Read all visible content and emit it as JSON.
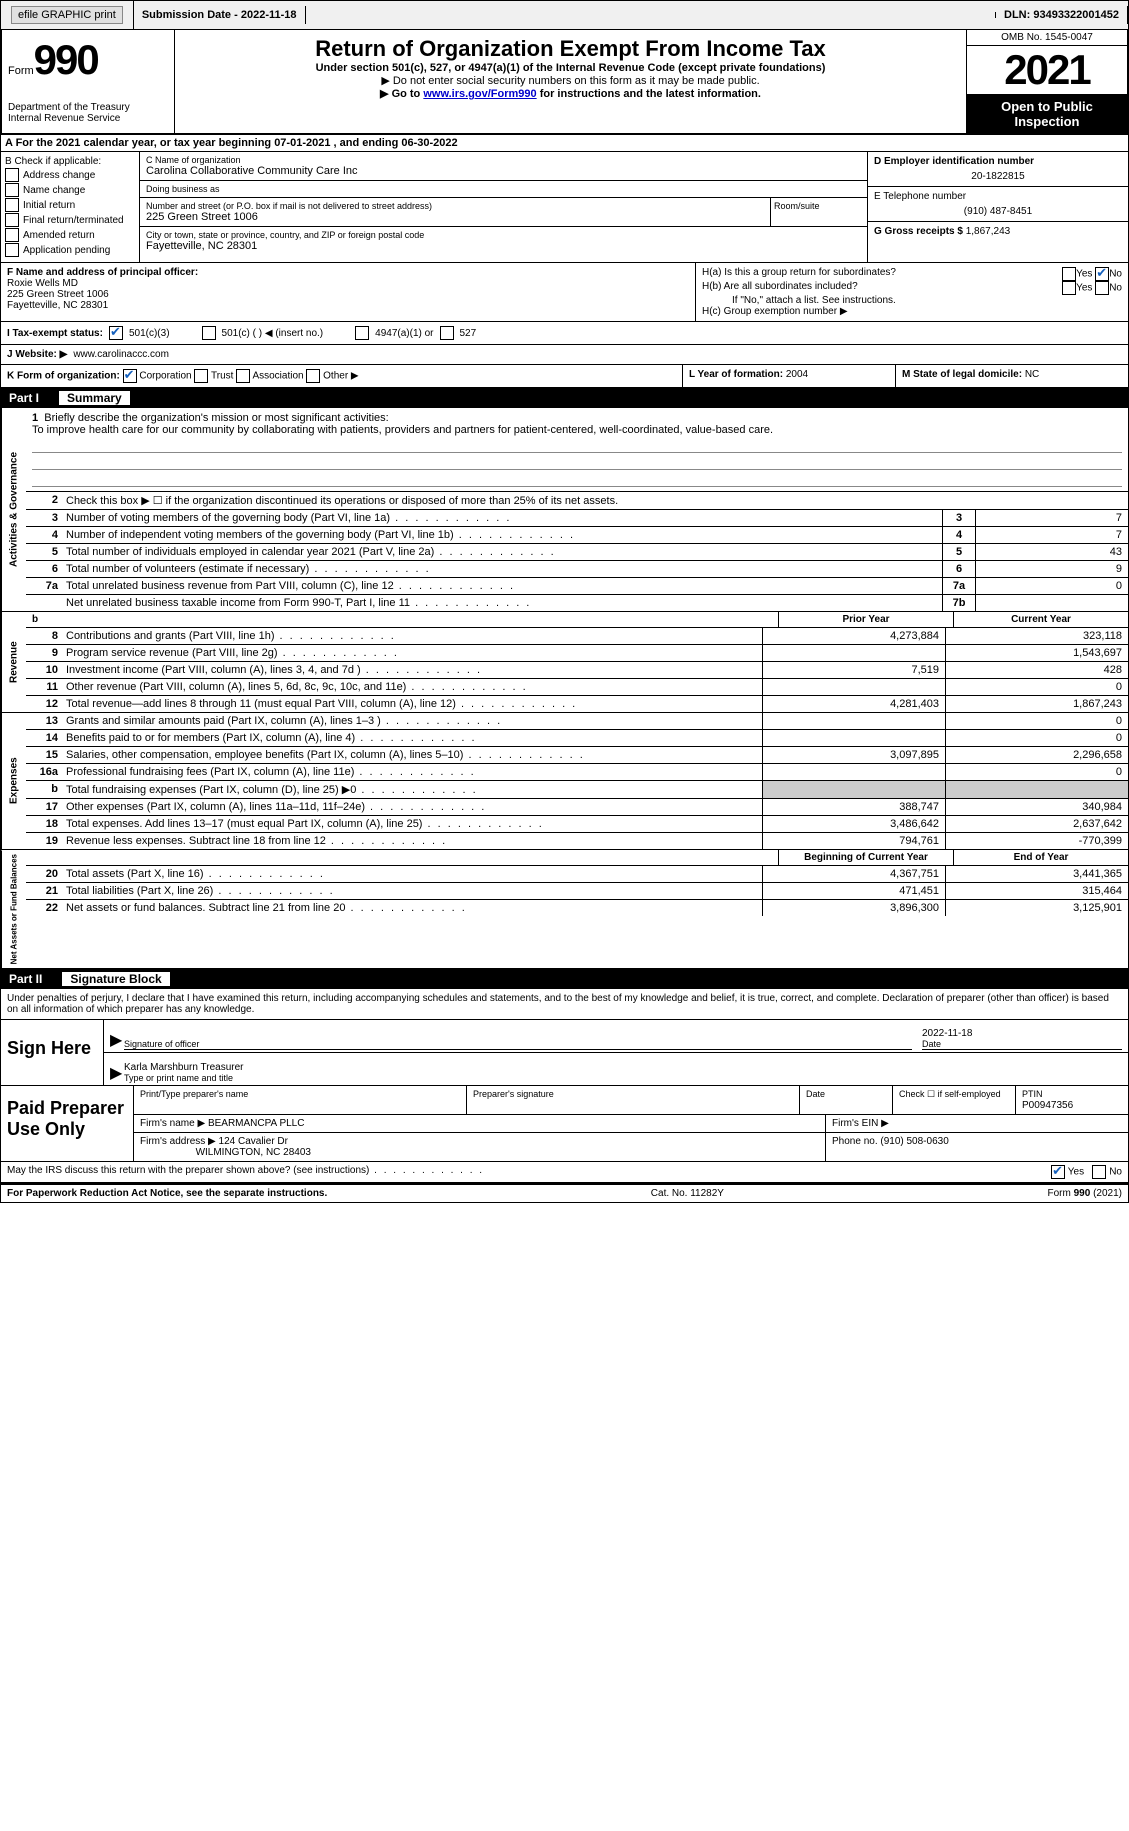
{
  "top_bar": {
    "efile": "efile GRAPHIC print",
    "submission_label": "Submission Date - ",
    "submission_date": "2022-11-18",
    "dln_label": "DLN: ",
    "dln": "93493322001452"
  },
  "header": {
    "form_label": "Form",
    "form_number": "990",
    "dept": "Department of the Treasury",
    "irs": "Internal Revenue Service",
    "title": "Return of Organization Exempt From Income Tax",
    "subtitle": "Under section 501(c), 527, or 4947(a)(1) of the Internal Revenue Code (except private foundations)",
    "warn": "▶ Do not enter social security numbers on this form as it may be made public.",
    "goto": "▶ Go to ",
    "goto_link": "www.irs.gov/Form990",
    "goto_tail": " for instructions and the latest information.",
    "omb": "OMB No. 1545-0047",
    "year": "2021",
    "inspect1": "Open to Public",
    "inspect2": "Inspection"
  },
  "section_a": "A For the 2021 calendar year, or tax year beginning 07-01-2021    , and ending 06-30-2022",
  "col_b": {
    "header": "B Check if applicable:",
    "items": [
      "Address change",
      "Name change",
      "Initial return",
      "Final return/terminated",
      "Amended return",
      "Application pending"
    ]
  },
  "col_c": {
    "name_label": "C Name of organization",
    "name": "Carolina Collaborative Community Care Inc",
    "dba_label": "Doing business as",
    "dba": "",
    "street_label": "Number and street (or P.O. box if mail is not delivered to street address)",
    "room_label": "Room/suite",
    "street": "225 Green Street 1006",
    "city_label": "City or town, state or province, country, and ZIP or foreign postal code",
    "city": "Fayetteville, NC  28301"
  },
  "col_d": {
    "ein_label": "D Employer identification number",
    "ein": "20-1822815",
    "phone_label": "E Telephone number",
    "phone": "(910) 487-8451",
    "gross_label": "G Gross receipts $ ",
    "gross": "1,867,243"
  },
  "col_f": {
    "label": "F Name and address of principal officer:",
    "name": "Roxie Wells MD",
    "street": "225 Green Street 1006",
    "city": "Fayetteville, NC  28301"
  },
  "col_h": {
    "ha": "H(a)  Is this a group return for subordinates?",
    "hb": "H(b)  Are all subordinates included?",
    "hb_note": "If \"No,\" attach a list. See instructions.",
    "hc": "H(c)  Group exemption number ▶",
    "yes": "Yes",
    "no": "No"
  },
  "row_i": {
    "label": "I  Tax-exempt status:",
    "opts": [
      "501(c)(3)",
      "501(c) (  ) ◀ (insert no.)",
      "4947(a)(1) or",
      "527"
    ]
  },
  "row_j": {
    "label": "J  Website: ▶",
    "value": "www.carolinaccc.com"
  },
  "row_k": {
    "label": "K Form of organization:",
    "opts": [
      "Corporation",
      "Trust",
      "Association",
      "Other ▶"
    ],
    "l_label": "L Year of formation: ",
    "l_value": "2004",
    "m_label": "M State of legal domicile: ",
    "m_value": "NC"
  },
  "part1": {
    "num": "Part I",
    "title": "Summary"
  },
  "mission": {
    "num": "1",
    "label": "Briefly describe the organization's mission or most significant activities:",
    "text": "To improve health care for our community by collaborating with patients, providers and partners for patient-centered, well-coordinated, value-based care."
  },
  "line2": {
    "num": "2",
    "text": "Check this box ▶ ☐ if the organization discontinued its operations or disposed of more than 25% of its net assets."
  },
  "gov_rows": [
    {
      "num": "3",
      "desc": "Number of voting members of the governing body (Part VI, line 1a)",
      "box": "3",
      "val": "7"
    },
    {
      "num": "4",
      "desc": "Number of independent voting members of the governing body (Part VI, line 1b)",
      "box": "4",
      "val": "7"
    },
    {
      "num": "5",
      "desc": "Total number of individuals employed in calendar year 2021 (Part V, line 2a)",
      "box": "5",
      "val": "43"
    },
    {
      "num": "6",
      "desc": "Total number of volunteers (estimate if necessary)",
      "box": "6",
      "val": "9"
    },
    {
      "num": "7a",
      "desc": "Total unrelated business revenue from Part VIII, column (C), line 12",
      "box": "7a",
      "val": "0"
    },
    {
      "num": "",
      "desc": "Net unrelated business taxable income from Form 990-T, Part I, line 11",
      "box": "7b",
      "val": ""
    }
  ],
  "col_headers": {
    "prior": "Prior Year",
    "current": "Current Year",
    "begin": "Beginning of Current Year",
    "end": "End of Year"
  },
  "rev_rows": [
    {
      "num": "8",
      "desc": "Contributions and grants (Part VIII, line 1h)",
      "prior": "4,273,884",
      "curr": "323,118"
    },
    {
      "num": "9",
      "desc": "Program service revenue (Part VIII, line 2g)",
      "prior": "",
      "curr": "1,543,697"
    },
    {
      "num": "10",
      "desc": "Investment income (Part VIII, column (A), lines 3, 4, and 7d )",
      "prior": "7,519",
      "curr": "428"
    },
    {
      "num": "11",
      "desc": "Other revenue (Part VIII, column (A), lines 5, 6d, 8c, 9c, 10c, and 11e)",
      "prior": "",
      "curr": "0"
    },
    {
      "num": "12",
      "desc": "Total revenue—add lines 8 through 11 (must equal Part VIII, column (A), line 12)",
      "prior": "4,281,403",
      "curr": "1,867,243"
    }
  ],
  "exp_rows": [
    {
      "num": "13",
      "desc": "Grants and similar amounts paid (Part IX, column (A), lines 1–3 )",
      "prior": "",
      "curr": "0"
    },
    {
      "num": "14",
      "desc": "Benefits paid to or for members (Part IX, column (A), line 4)",
      "prior": "",
      "curr": "0"
    },
    {
      "num": "15",
      "desc": "Salaries, other compensation, employee benefits (Part IX, column (A), lines 5–10)",
      "prior": "3,097,895",
      "curr": "2,296,658"
    },
    {
      "num": "16a",
      "desc": "Professional fundraising fees (Part IX, column (A), line 11e)",
      "prior": "",
      "curr": "0"
    },
    {
      "num": "b",
      "desc": "Total fundraising expenses (Part IX, column (D), line 25) ▶0",
      "prior": "SHADED",
      "curr": "SHADED"
    },
    {
      "num": "17",
      "desc": "Other expenses (Part IX, column (A), lines 11a–11d, 11f–24e)",
      "prior": "388,747",
      "curr": "340,984"
    },
    {
      "num": "18",
      "desc": "Total expenses. Add lines 13–17 (must equal Part IX, column (A), line 25)",
      "prior": "3,486,642",
      "curr": "2,637,642"
    },
    {
      "num": "19",
      "desc": "Revenue less expenses. Subtract line 18 from line 12",
      "prior": "794,761",
      "curr": "-770,399"
    }
  ],
  "net_rows": [
    {
      "num": "20",
      "desc": "Total assets (Part X, line 16)",
      "prior": "4,367,751",
      "curr": "3,441,365"
    },
    {
      "num": "21",
      "desc": "Total liabilities (Part X, line 26)",
      "prior": "471,451",
      "curr": "315,464"
    },
    {
      "num": "22",
      "desc": "Net assets or fund balances. Subtract line 21 from line 20",
      "prior": "3,896,300",
      "curr": "3,125,901"
    }
  ],
  "part2": {
    "num": "Part II",
    "title": "Signature Block"
  },
  "declare": "Under penalties of perjury, I declare that I have examined this return, including accompanying schedules and statements, and to the best of my knowledge and belief, it is true, correct, and complete. Declaration of preparer (other than officer) is based on all information of which preparer has any knowledge.",
  "sign": {
    "label": "Sign Here",
    "sig_label": "Signature of officer",
    "date_label": "Date",
    "date": "2022-11-18",
    "name": "Karla Marshburn Treasurer",
    "name_label": "Type or print name and title"
  },
  "preparer": {
    "label": "Paid Preparer Use Only",
    "print_label": "Print/Type preparer's name",
    "sig_label": "Preparer's signature",
    "date_label": "Date",
    "check_label": "Check ☐ if self-employed",
    "ptin_label": "PTIN",
    "ptin": "P00947356",
    "firm_name_label": "Firm's name    ▶",
    "firm_name": "BEARMANCPA PLLC",
    "firm_ein_label": "Firm's EIN ▶",
    "firm_addr_label": "Firm's address ▶",
    "firm_addr1": "124 Cavalier Dr",
    "firm_addr2": "WILMINGTON, NC  28403",
    "phone_label": "Phone no. ",
    "phone": "(910) 508-0630"
  },
  "discuss": {
    "text": "May the IRS discuss this return with the preparer shown above? (see instructions)",
    "yes": "Yes",
    "no": "No"
  },
  "footer": {
    "left": "For Paperwork Reduction Act Notice, see the separate instructions.",
    "mid": "Cat. No. 11282Y",
    "right": "Form 990 (2021)"
  },
  "vert_labels": {
    "gov": "Activities & Governance",
    "rev": "Revenue",
    "exp": "Expenses",
    "net": "Net Assets or Fund Balances"
  }
}
